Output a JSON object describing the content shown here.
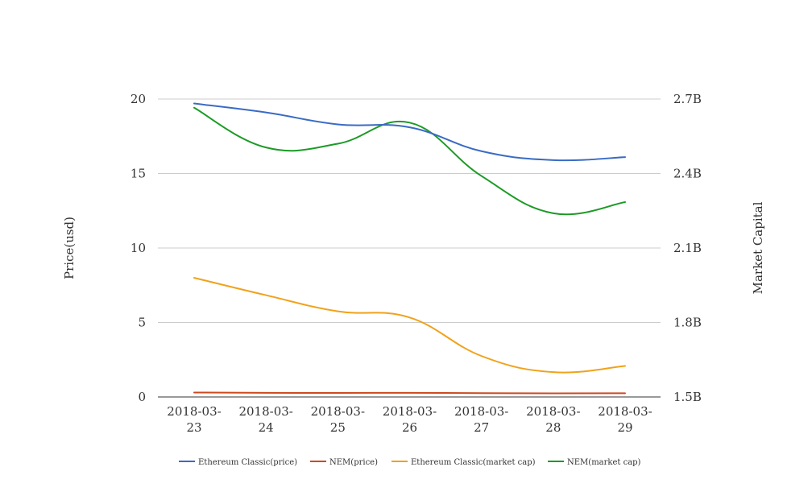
{
  "chart_data": {
    "type": "line",
    "categories": [
      "2018-03-23",
      "2018-03-24",
      "2018-03-25",
      "2018-03-26",
      "2018-03-27",
      "2018-03-28",
      "2018-03-29"
    ],
    "x_tick_labels": [
      [
        "2018-03-",
        "23"
      ],
      [
        "2018-03-",
        "24"
      ],
      [
        "2018-03-",
        "25"
      ],
      [
        "2018-03-",
        "26"
      ],
      [
        "2018-03-",
        "27"
      ],
      [
        "2018-03-",
        "28"
      ],
      [
        "2018-03-",
        "29"
      ]
    ],
    "y_left": {
      "label": "Price(usd)",
      "ylim": [
        0,
        20
      ],
      "ticks": [
        0,
        5,
        10,
        15,
        20
      ],
      "tick_labels": [
        "0",
        "5",
        "10",
        "15",
        "20"
      ]
    },
    "y_right": {
      "label": "Market Capital",
      "ylim": [
        1500000000,
        2700000000
      ],
      "ticks": [
        1500000000,
        1800000000,
        2100000000,
        2400000000,
        2700000000
      ],
      "tick_labels": [
        "1.5B",
        "1.8B",
        "2.1B",
        "2.4B",
        "2.7B"
      ]
    },
    "series": [
      {
        "name": "Ethereum Classic(price)",
        "axis": "left",
        "color": "#3a6bc4",
        "values": [
          19.7,
          19.1,
          18.3,
          18.1,
          16.5,
          15.9,
          16.1
        ]
      },
      {
        "name": "NEM(price)",
        "axis": "left",
        "color": "#cc4a1f",
        "values": [
          0.3,
          0.28,
          0.27,
          0.28,
          0.26,
          0.24,
          0.25
        ]
      },
      {
        "name": "Ethereum Classic(market cap)",
        "axis": "right",
        "color": "#f0a21b",
        "values": [
          1980000000,
          1910000000,
          1845000000,
          1820000000,
          1665000000,
          1600000000,
          1625000000
        ]
      },
      {
        "name": "NEM(market cap)",
        "axis": "right",
        "color": "#1c9a26",
        "values": [
          2665000000,
          2505000000,
          2520000000,
          2605000000,
          2390000000,
          2240000000,
          2285000000
        ]
      }
    ],
    "grid": true,
    "legend_position": "bottom"
  }
}
